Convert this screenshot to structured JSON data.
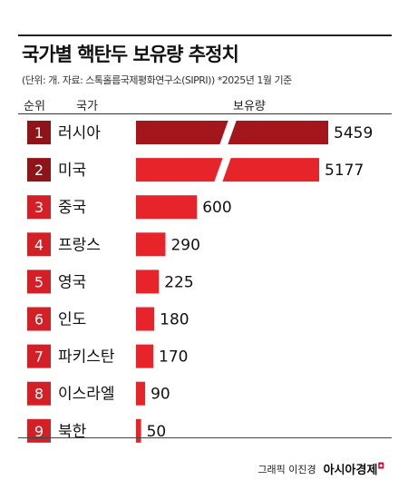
{
  "header": {
    "title": "국가별 핵탄두 보유량 추정치",
    "subtitle": "(단위: 개. 자료: 스톡홀름국제평화연구소(SIPRI)) *2025년 1월 기준",
    "col_rank": "순위",
    "col_country": "국가",
    "col_value": "보유량"
  },
  "footer": {
    "credit": "그래픽 이진경",
    "brand": "아시아경제"
  },
  "colors": {
    "bar": "#e8242b",
    "bar_top": "#a3161c",
    "rank_box": "#d31f26",
    "rank_box_top": "#8f1419"
  },
  "chart_data": {
    "type": "bar",
    "orientation": "horizontal",
    "axis_break": true,
    "categories": [
      "러시아",
      "미국",
      "중국",
      "프랑스",
      "영국",
      "인도",
      "파키스탄",
      "이스라엘",
      "북한"
    ],
    "ranks": [
      "1",
      "2",
      "3",
      "4",
      "5",
      "6",
      "7",
      "8",
      "9"
    ],
    "values": [
      5459,
      5177,
      600,
      290,
      225,
      180,
      170,
      90,
      50
    ]
  }
}
